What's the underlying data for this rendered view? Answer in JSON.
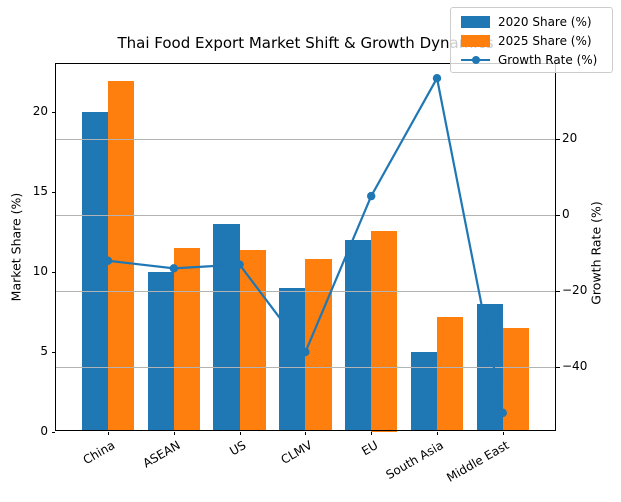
{
  "chart_data": {
    "type": "bar",
    "combo": "grouped bars on left axis with line overlay on right axis",
    "title": "Thai Food Export Market Shift & Growth Dynamics",
    "categories": [
      "China",
      "ASEAN",
      "US",
      "CLMV",
      "EU",
      "South Asia",
      "Middle East"
    ],
    "series": [
      {
        "name": "2020 Share (%)",
        "type": "bar",
        "axis": "left",
        "color": "#1f77b4",
        "values": [
          20,
          10,
          13,
          9,
          12,
          5,
          8
        ]
      },
      {
        "name": "2025 Share (%)",
        "type": "bar",
        "axis": "left",
        "color": "#ff7f0e",
        "values": [
          22,
          11.5,
          11.4,
          10.8,
          12.6,
          7.2,
          6.5
        ]
      },
      {
        "name": "Growth Rate (%)",
        "type": "line",
        "axis": "right",
        "color": "#1f77b4",
        "values": [
          -12,
          -14,
          -13,
          -36,
          5,
          36,
          -52
        ]
      }
    ],
    "left_axis": {
      "label": "Market Share (%)",
      "ticks": [
        0,
        5,
        10,
        15,
        20
      ],
      "lim": [
        0,
        23.1
      ]
    },
    "right_axis": {
      "label": "Growth Rate (%)",
      "ticks": [
        20,
        0,
        -20,
        -40
      ],
      "lim": [
        -56.9,
        40
      ]
    },
    "grid": {
      "horizontal": true,
      "on_axis": "right",
      "color": "#b3b3b3"
    },
    "legend": {
      "position": "upper-right",
      "entries": [
        "2020 Share (%)",
        "2025 Share (%)",
        "Growth Rate (%)"
      ]
    },
    "colors": {
      "bar_2020": "#1f77b4",
      "bar_2025": "#ff7f0e",
      "line": "#1f77b4",
      "spine": "#000000",
      "background": "#ffffff"
    }
  }
}
